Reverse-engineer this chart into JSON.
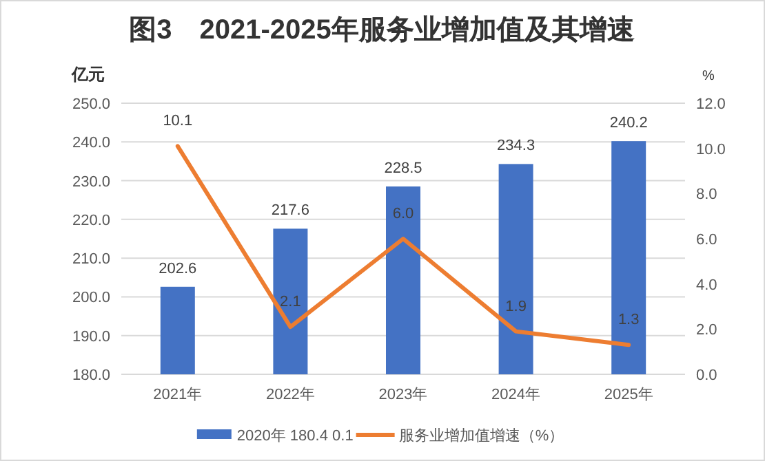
{
  "chart_data": {
    "type": "bar",
    "title": "图3　2021-2025年服务业增加值及其增速",
    "ylabel": "亿元",
    "y2label": "%",
    "categories": [
      "2021年",
      "2022年",
      "2023年",
      "2024年",
      "2025年"
    ],
    "series": [
      {
        "name": "2020年 180.4 0.1",
        "color": "#4472c4",
        "values": [
          202.6,
          217.6,
          228.5,
          234.3,
          240.2
        ]
      },
      {
        "name": "服务业增加值增速（%）",
        "type": "line",
        "axis": "y2",
        "color": "#ed7d31",
        "values": [
          10.1,
          2.1,
          6.0,
          1.9,
          1.3
        ],
        "value_labels": [
          "10.1",
          "2.1",
          "6.0",
          "1.9",
          "1.3"
        ]
      }
    ],
    "ylim": [
      180,
      250
    ],
    "yticks": [
      {
        "value": 180,
        "label": "180.0"
      },
      {
        "value": 190,
        "label": "190.0"
      },
      {
        "value": 200,
        "label": "200.0"
      },
      {
        "value": 210,
        "label": "210.0"
      },
      {
        "value": 220,
        "label": "220.0"
      },
      {
        "value": 230,
        "label": "230.0"
      },
      {
        "value": 240,
        "label": "240.0"
      },
      {
        "value": 250,
        "label": "250.0"
      }
    ],
    "y2lim": [
      0,
      12
    ],
    "y2ticks": [
      {
        "value": 0,
        "label": "0.0"
      },
      {
        "value": 2,
        "label": "2.0"
      },
      {
        "value": 4,
        "label": "4.0"
      },
      {
        "value": 6,
        "label": "6.0"
      },
      {
        "value": 8,
        "label": "8.0"
      },
      {
        "value": 10,
        "label": "10.0"
      },
      {
        "value": 12,
        "label": "12.0"
      }
    ],
    "grid": "y",
    "legend": "bottom",
    "data_labels": true
  }
}
